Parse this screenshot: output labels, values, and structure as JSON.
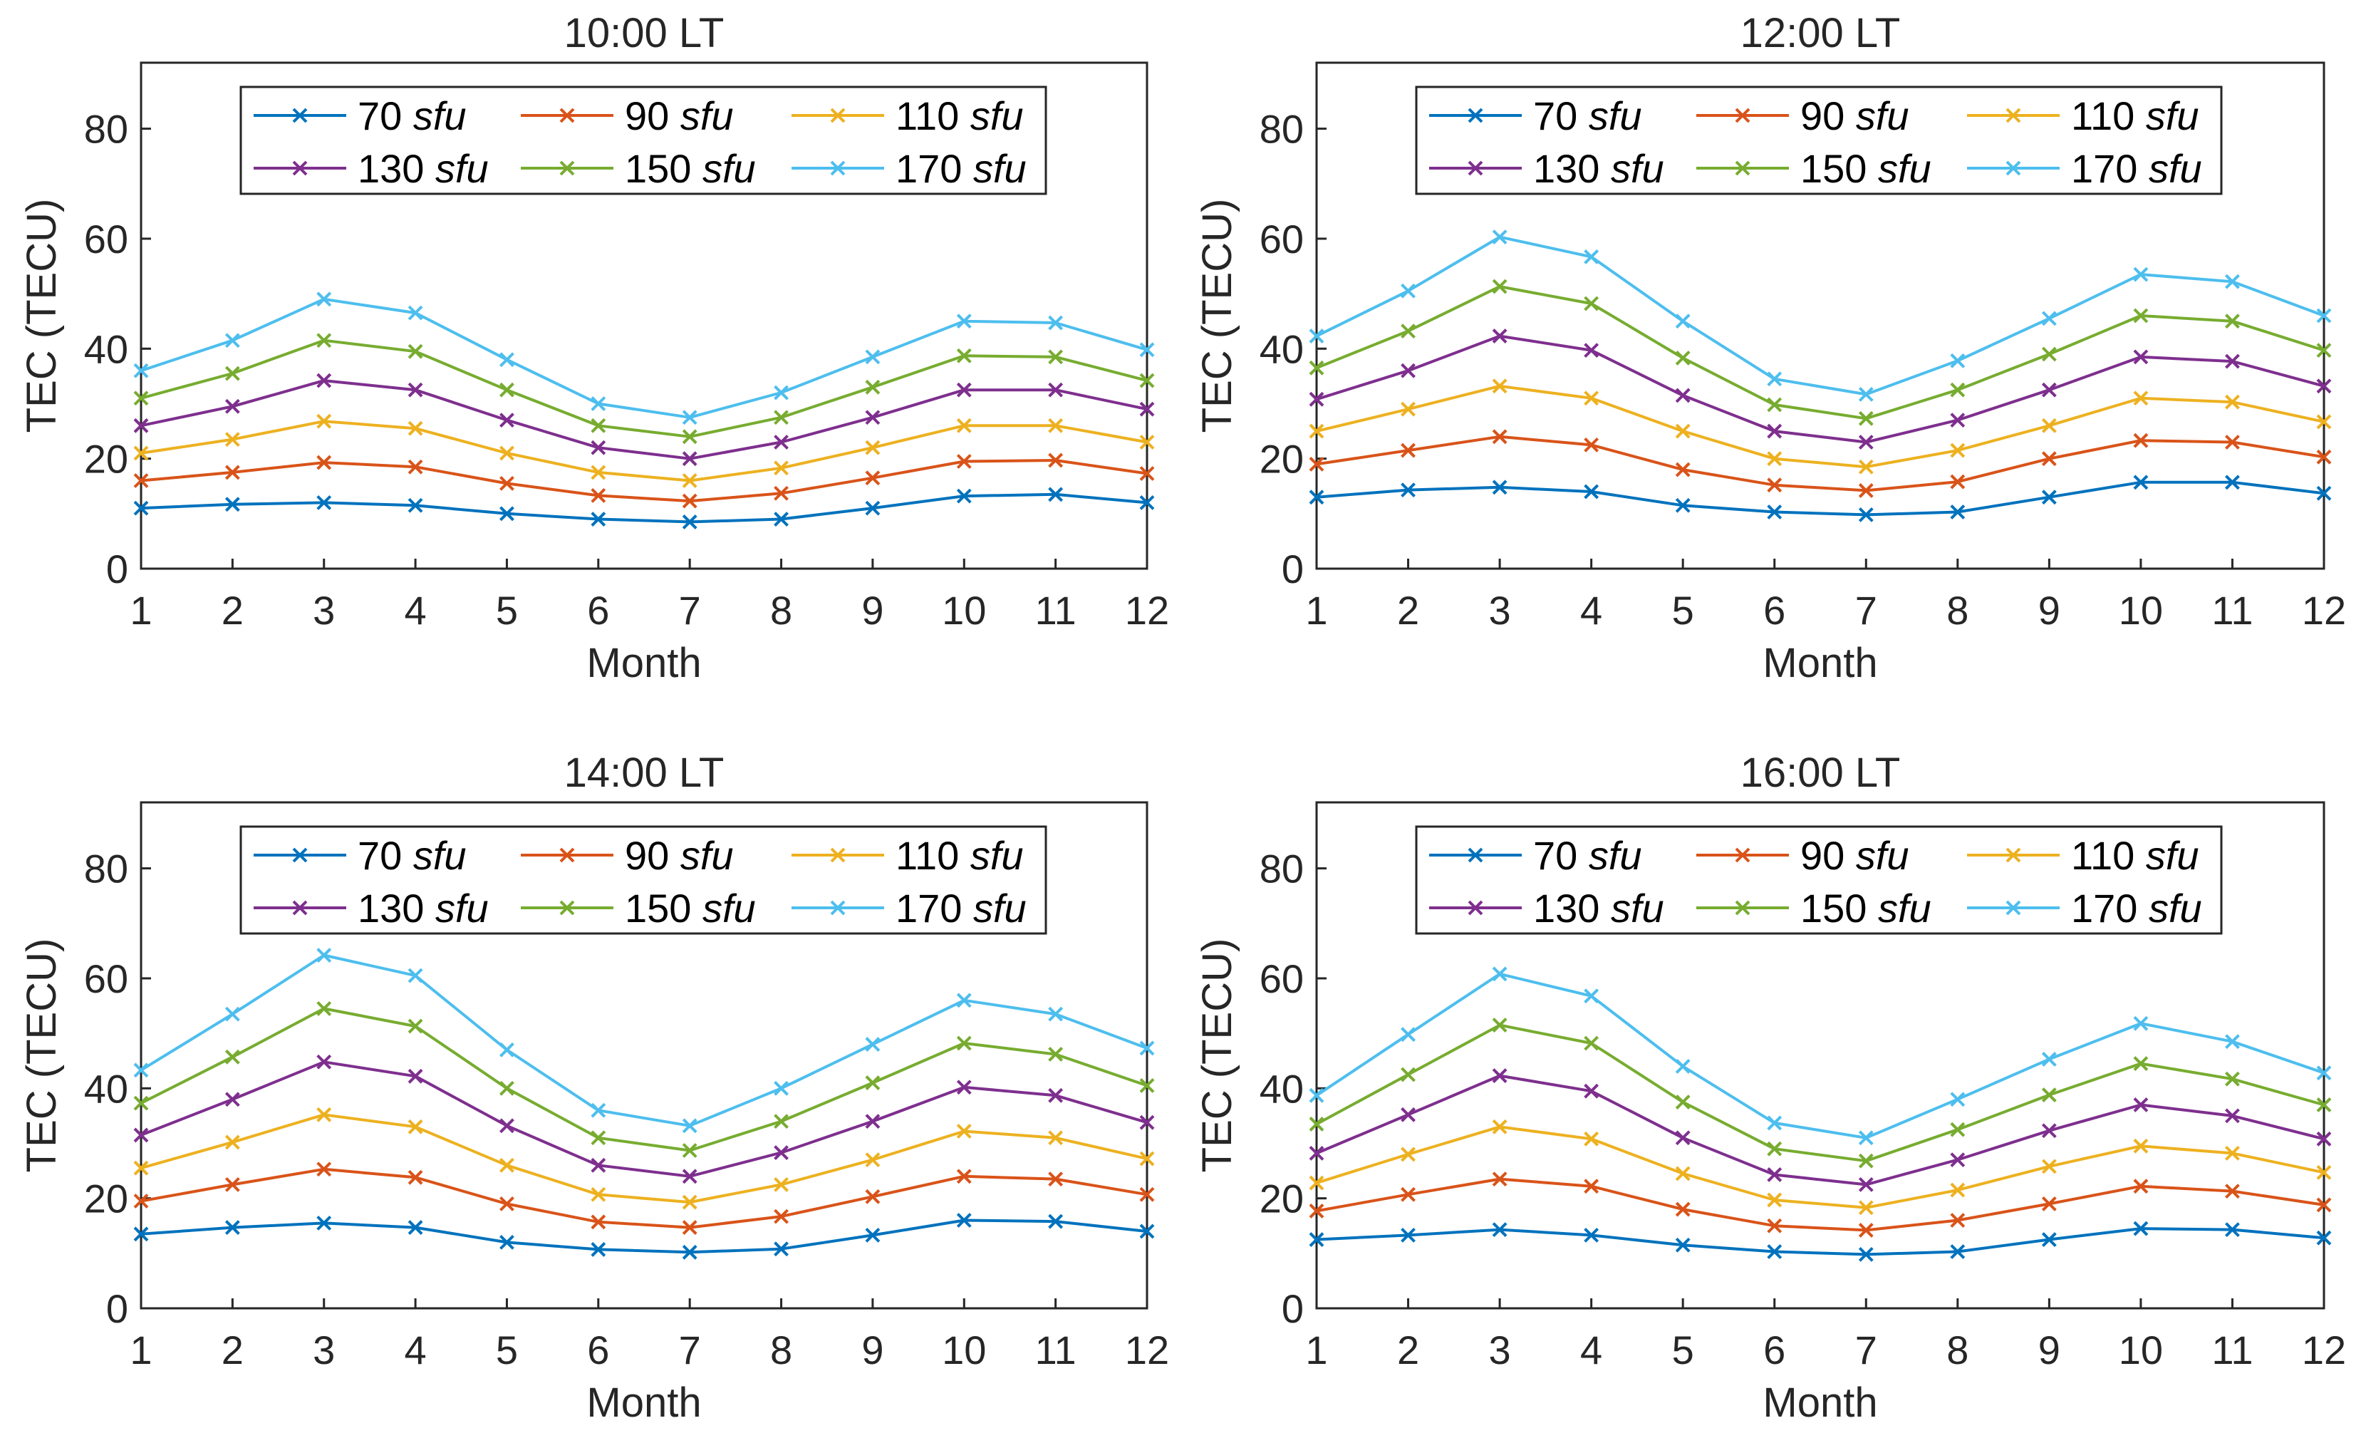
{
  "chart_data": [
    {
      "type": "line",
      "title": "10:00 LT",
      "xlabel": "Month",
      "ylabel": "TEC (TECU)",
      "x": [
        1,
        2,
        3,
        4,
        5,
        6,
        7,
        8,
        9,
        10,
        11,
        12
      ],
      "xlim": [
        1,
        12
      ],
      "ylim": [
        0,
        92
      ],
      "yticks": [
        0,
        20,
        40,
        60,
        80
      ],
      "legend_position": "top",
      "series": [
        {
          "name": "70",
          "unit": "sfu",
          "color": "#0072BD",
          "values": [
            11,
            11.7,
            12,
            11.5,
            10,
            9,
            8.5,
            9,
            11,
            13.2,
            13.5,
            12
          ]
        },
        {
          "name": "90",
          "unit": "sfu",
          "color": "#D95319",
          "values": [
            16,
            17.5,
            19.3,
            18.5,
            15.5,
            13.3,
            12.3,
            13.7,
            16.5,
            19.5,
            19.7,
            17.3
          ]
        },
        {
          "name": "110",
          "unit": "sfu",
          "color": "#EDB120",
          "values": [
            21,
            23.5,
            26.8,
            25.5,
            21,
            17.5,
            16,
            18.3,
            22,
            26,
            26,
            23
          ]
        },
        {
          "name": "130",
          "unit": "sfu",
          "color": "#7E2F8E",
          "values": [
            26,
            29.5,
            34.2,
            32.5,
            27,
            22,
            20,
            23,
            27.5,
            32.5,
            32.5,
            29
          ]
        },
        {
          "name": "150",
          "unit": "sfu",
          "color": "#77AC30",
          "values": [
            31,
            35.5,
            41.5,
            39.5,
            32.5,
            26,
            24,
            27.5,
            33,
            38.7,
            38.5,
            34.2
          ]
        },
        {
          "name": "170",
          "unit": "sfu",
          "color": "#4DBEEE",
          "values": [
            36,
            41.5,
            49,
            46.5,
            38,
            30,
            27.5,
            32,
            38.5,
            45,
            44.7,
            39.8
          ]
        }
      ]
    },
    {
      "type": "line",
      "title": "12:00 LT",
      "xlabel": "Month",
      "ylabel": "TEC (TECU)",
      "x": [
        1,
        2,
        3,
        4,
        5,
        6,
        7,
        8,
        9,
        10,
        11,
        12
      ],
      "xlim": [
        1,
        12
      ],
      "ylim": [
        0,
        92
      ],
      "yticks": [
        0,
        20,
        40,
        60,
        80
      ],
      "legend_position": "top",
      "series": [
        {
          "name": "70",
          "unit": "sfu",
          "color": "#0072BD",
          "values": [
            13,
            14.3,
            14.8,
            14,
            11.5,
            10.3,
            9.8,
            10.3,
            13,
            15.7,
            15.7,
            13.7
          ]
        },
        {
          "name": "90",
          "unit": "sfu",
          "color": "#D95319",
          "values": [
            19,
            21.5,
            24,
            22.5,
            18,
            15.2,
            14.2,
            15.8,
            20,
            23.3,
            23,
            20.3
          ]
        },
        {
          "name": "110",
          "unit": "sfu",
          "color": "#EDB120",
          "values": [
            25,
            29,
            33.2,
            31,
            25,
            20,
            18.5,
            21.5,
            26,
            31,
            30.3,
            26.7
          ]
        },
        {
          "name": "130",
          "unit": "sfu",
          "color": "#7E2F8E",
          "values": [
            30.8,
            36,
            42.3,
            39.7,
            31.5,
            25,
            23,
            27,
            32.5,
            38.5,
            37.7,
            33.2
          ]
        },
        {
          "name": "150",
          "unit": "sfu",
          "color": "#77AC30",
          "values": [
            36.5,
            43.2,
            51.3,
            48.2,
            38.3,
            29.8,
            27.3,
            32.5,
            39,
            46,
            45,
            39.7
          ]
        },
        {
          "name": "170",
          "unit": "sfu",
          "color": "#4DBEEE",
          "values": [
            42.3,
            50.5,
            60.3,
            56.7,
            45,
            34.5,
            31.7,
            37.8,
            45.5,
            53.5,
            52.2,
            46
          ]
        }
      ]
    },
    {
      "type": "line",
      "title": "14:00 LT",
      "xlabel": "Month",
      "ylabel": "TEC (TECU)",
      "x": [
        1,
        2,
        3,
        4,
        5,
        6,
        7,
        8,
        9,
        10,
        11,
        12
      ],
      "xlim": [
        1,
        12
      ],
      "ylim": [
        0,
        92
      ],
      "yticks": [
        0,
        20,
        40,
        60,
        80
      ],
      "legend_position": "top",
      "series": [
        {
          "name": "70",
          "unit": "sfu",
          "color": "#0072BD",
          "values": [
            13.5,
            14.7,
            15.5,
            14.7,
            12,
            10.7,
            10.2,
            10.8,
            13.3,
            16,
            15.8,
            14
          ]
        },
        {
          "name": "90",
          "unit": "sfu",
          "color": "#D95319",
          "values": [
            19.5,
            22.5,
            25.3,
            23.8,
            19,
            15.7,
            14.7,
            16.7,
            20.3,
            24,
            23.5,
            20.7
          ]
        },
        {
          "name": "110",
          "unit": "sfu",
          "color": "#EDB120",
          "values": [
            25.5,
            30.2,
            35.2,
            33,
            26,
            20.7,
            19.3,
            22.5,
            27,
            32.2,
            31,
            27.2
          ]
        },
        {
          "name": "130",
          "unit": "sfu",
          "color": "#7E2F8E",
          "values": [
            31.5,
            38,
            44.8,
            42.2,
            33.2,
            26,
            24,
            28.3,
            34,
            40.2,
            38.7,
            33.8
          ]
        },
        {
          "name": "150",
          "unit": "sfu",
          "color": "#77AC30",
          "values": [
            37.3,
            45.7,
            54.5,
            51.3,
            40,
            31,
            28.7,
            34,
            41,
            48.2,
            46.2,
            40.5
          ]
        },
        {
          "name": "170",
          "unit": "sfu",
          "color": "#4DBEEE",
          "values": [
            43.3,
            53.5,
            64.2,
            60.5,
            47,
            36,
            33.2,
            40,
            48,
            56,
            53.5,
            47.3
          ]
        }
      ]
    },
    {
      "type": "line",
      "title": "16:00 LT",
      "xlabel": "Month",
      "ylabel": "TEC (TECU)",
      "x": [
        1,
        2,
        3,
        4,
        5,
        6,
        7,
        8,
        9,
        10,
        11,
        12
      ],
      "xlim": [
        1,
        12
      ],
      "ylim": [
        0,
        92
      ],
      "yticks": [
        0,
        20,
        40,
        60,
        80
      ],
      "legend_position": "top",
      "series": [
        {
          "name": "70",
          "unit": "sfu",
          "color": "#0072BD",
          "values": [
            12.5,
            13.3,
            14.3,
            13.3,
            11.5,
            10.3,
            9.8,
            10.3,
            12.5,
            14.5,
            14.3,
            12.8
          ]
        },
        {
          "name": "90",
          "unit": "sfu",
          "color": "#D95319",
          "values": [
            17.7,
            20.7,
            23.5,
            22.2,
            18,
            15,
            14.2,
            16,
            19,
            22.2,
            21.3,
            18.8
          ]
        },
        {
          "name": "110",
          "unit": "sfu",
          "color": "#EDB120",
          "values": [
            22.8,
            28,
            33,
            30.8,
            24.5,
            19.7,
            18.3,
            21.5,
            25.8,
            29.5,
            28.2,
            24.7
          ]
        },
        {
          "name": "130",
          "unit": "sfu",
          "color": "#7E2F8E",
          "values": [
            28.2,
            35.2,
            42.3,
            39.5,
            31,
            24.3,
            22.5,
            27,
            32.3,
            37,
            35,
            30.8
          ]
        },
        {
          "name": "150",
          "unit": "sfu",
          "color": "#77AC30",
          "values": [
            33.5,
            42.5,
            51.5,
            48.2,
            37.5,
            29,
            26.8,
            32.5,
            38.8,
            44.5,
            41.7,
            37
          ]
        },
        {
          "name": "170",
          "unit": "sfu",
          "color": "#4DBEEE",
          "values": [
            38.7,
            49.8,
            60.8,
            56.8,
            44,
            33.7,
            31,
            38,
            45.3,
            51.8,
            48.5,
            42.8
          ]
        }
      ]
    }
  ]
}
